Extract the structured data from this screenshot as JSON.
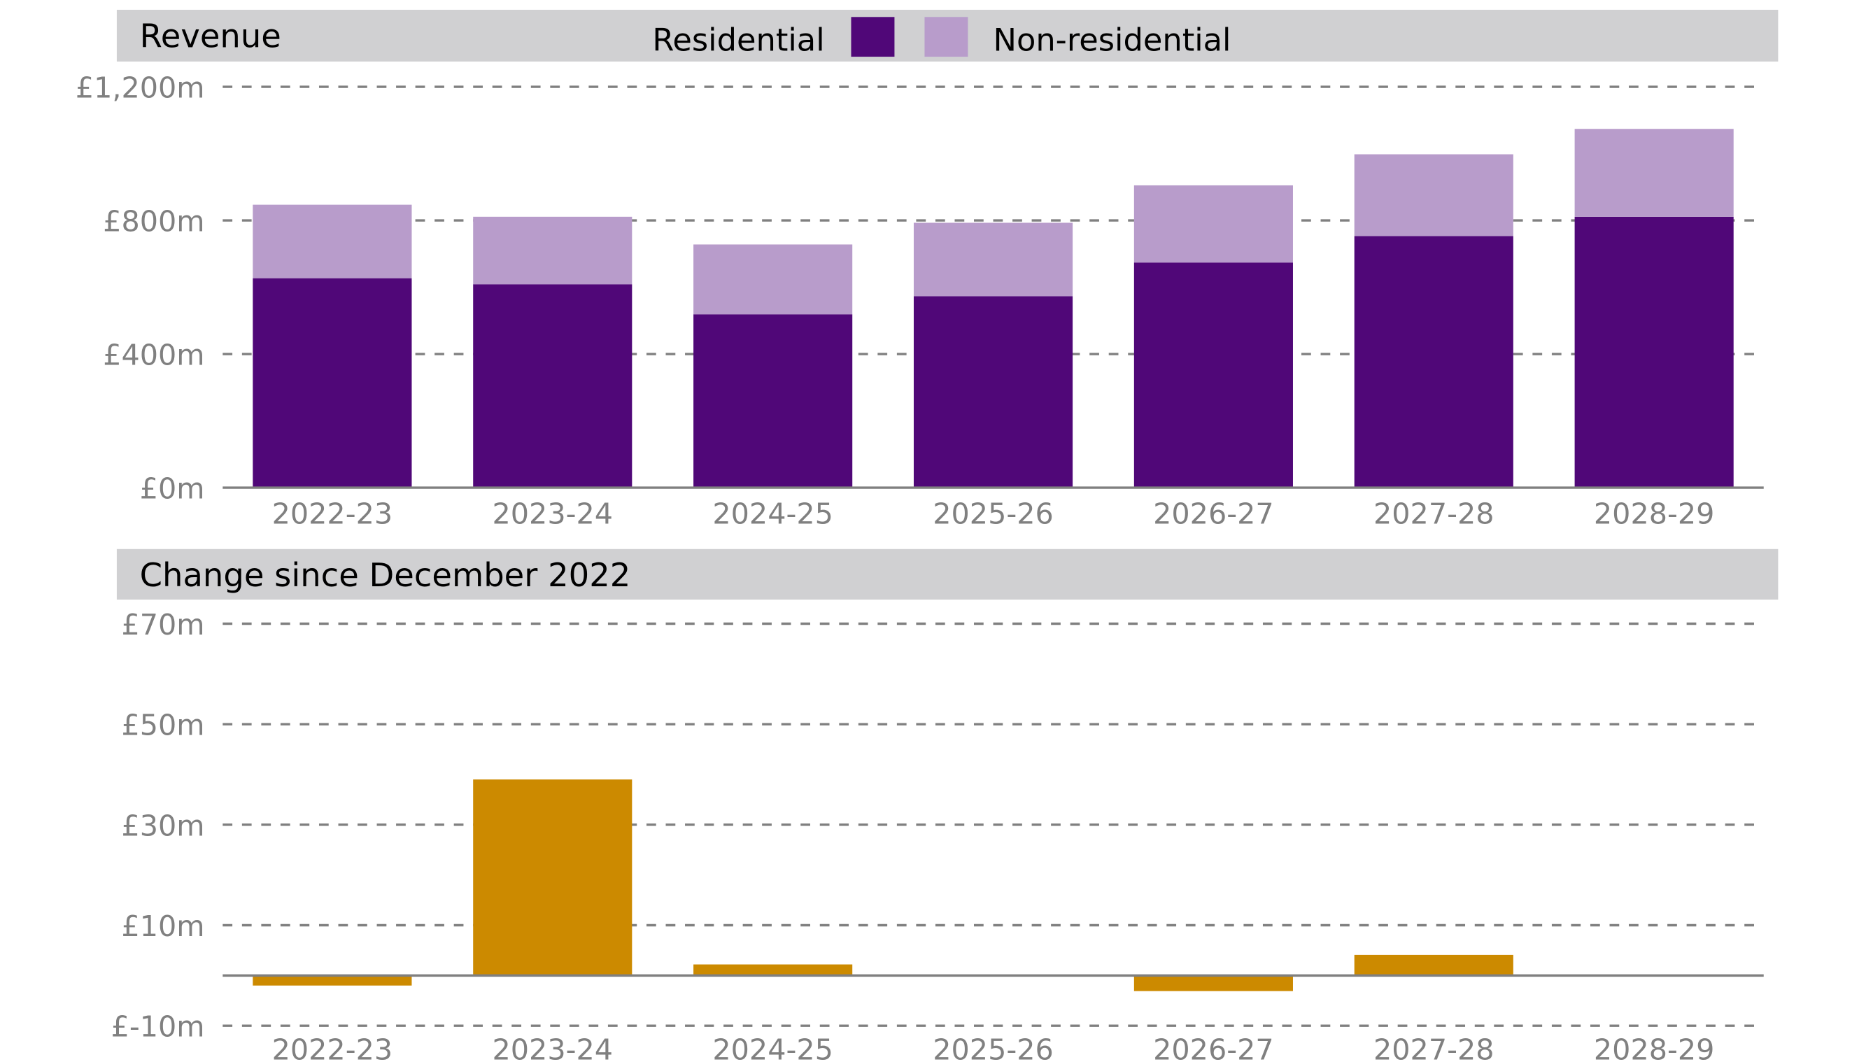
{
  "chart_data": [
    {
      "type": "bar",
      "stacked": true,
      "title": "Revenue",
      "categories": [
        "2022-23",
        "2023-24",
        "2024-25",
        "2025-26",
        "2026-27",
        "2027-28",
        "2028-29"
      ],
      "series": [
        {
          "name": "Residential",
          "color": "#500778",
          "values": [
            627,
            609,
            519,
            573,
            674,
            753,
            811
          ]
        },
        {
          "name": "Non-residential",
          "color": "#B89CCB",
          "values": [
            220,
            202,
            209,
            220,
            231,
            245,
            263
          ]
        }
      ],
      "ylim": [
        0,
        1200
      ],
      "yticks": [
        0,
        400,
        800,
        1200
      ],
      "ytick_labels": [
        "£0m",
        "£400m",
        "£800m",
        "£1,200m"
      ],
      "grid": "horizontal dashed",
      "legend": "top-center",
      "xlabel": "",
      "ylabel": ""
    },
    {
      "type": "bar",
      "title": "Change since December 2022",
      "categories": [
        "2022-23",
        "2023-24",
        "2024-25",
        "2025-26",
        "2026-27",
        "2027-28",
        "2028-29"
      ],
      "values": [
        -2,
        39,
        2.2,
        0,
        -3.1,
        4.1,
        0
      ],
      "color": "#CC8A00",
      "ylim": [
        -10,
        70
      ],
      "yticks": [
        -10,
        10,
        30,
        50,
        70
      ],
      "ytick_labels": [
        "£-10m",
        "£10m",
        "£30m",
        "£50m",
        "£70m"
      ],
      "grid": "horizontal dashed",
      "xlabel": "",
      "ylabel": ""
    }
  ],
  "colors": {
    "header_bg": "#D0D0D2",
    "grid": "#808080",
    "axis": "#808080"
  }
}
